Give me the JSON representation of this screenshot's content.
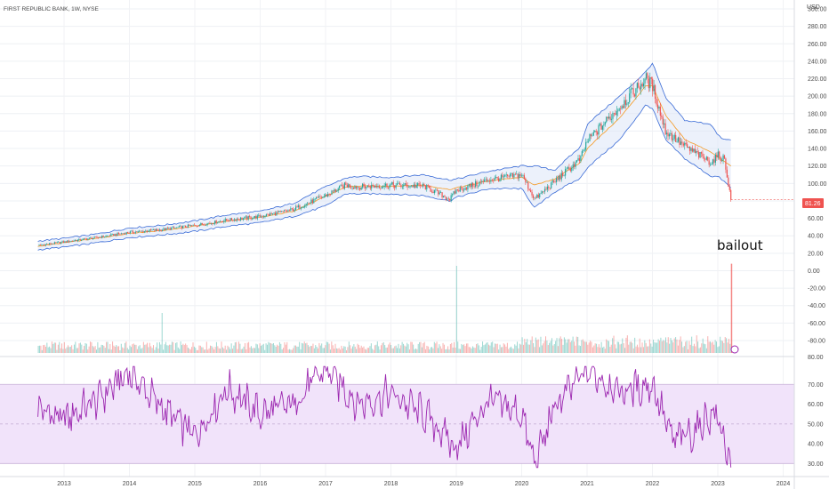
{
  "title": "FIRST REPUBLIC BANK, 1W, NYSE",
  "currency": "USD",
  "annotation": "bailout",
  "last_price_label": "81.26",
  "colors": {
    "up": "#26a69a",
    "down": "#ef5350",
    "band": "#3a6bd6",
    "band_fill": "#dce6f7",
    "basis": "#f59a23",
    "rsi": "#9c27b0",
    "rsi_band": "#f1e3fa",
    "price_tag": "#ef5350"
  },
  "chart_data": [
    {
      "type": "candlestick",
      "name": "price",
      "x_ticks": [
        "2013",
        "2014",
        "2015",
        "2016",
        "2017",
        "2018",
        "2019",
        "2020",
        "2021",
        "2022",
        "2023",
        "2024"
      ],
      "y_ticks": [
        "300.00",
        "280.00",
        "260.00",
        "240.00",
        "220.00",
        "200.00",
        "180.00",
        "160.00",
        "140.00",
        "120.00",
        "100.00",
        "80.00",
        "60.00",
        "40.00",
        "20.00",
        "0.00",
        "-20.00",
        "-40.00",
        "-60.00",
        "-80.00"
      ],
      "ylim": [
        -80,
        300
      ],
      "x": [
        2012.6,
        2013.0,
        2013.5,
        2014.0,
        2014.5,
        2015.0,
        2015.5,
        2016.0,
        2016.5,
        2017.0,
        2017.3,
        2017.5,
        2018.0,
        2018.5,
        2018.9,
        2019.0,
        2019.5,
        2020.0,
        2020.2,
        2020.5,
        2020.9,
        2021.0,
        2021.5,
        2021.9,
        2022.0,
        2022.2,
        2022.5,
        2022.9,
        2023.0,
        2023.1,
        2023.2
      ],
      "close": [
        29,
        33,
        38,
        44,
        47,
        52,
        58,
        62,
        70,
        86,
        98,
        96,
        98,
        97,
        82,
        92,
        104,
        110,
        82,
        102,
        128,
        148,
        188,
        220,
        212,
        160,
        142,
        124,
        132,
        128,
        81.26
      ],
      "bollinger": {
        "upper": [
          34,
          37,
          42,
          49,
          52,
          57,
          64,
          68,
          77,
          96,
          106,
          108,
          107,
          110,
          104,
          105,
          114,
          120,
          120,
          115,
          142,
          168,
          200,
          228,
          238,
          198,
          172,
          168,
          155,
          150,
          150
        ],
        "basis": [
          28,
          32,
          37,
          43,
          46,
          51,
          57,
          61,
          68,
          85,
          96,
          97,
          97,
          98,
          93,
          95,
          103,
          107,
          98,
          105,
          124,
          140,
          175,
          212,
          212,
          178,
          150,
          136,
          130,
          125,
          120
        ],
        "lower": [
          24,
          27,
          32,
          38,
          41,
          45,
          51,
          55,
          62,
          74,
          88,
          88,
          88,
          86,
          80,
          84,
          94,
          94,
          72,
          90,
          106,
          118,
          150,
          190,
          186,
          150,
          128,
          108,
          108,
          102,
          95
        ]
      }
    },
    {
      "type": "bar",
      "name": "volume",
      "spikes": [
        {
          "x": 2014.5,
          "relative": 0.45
        },
        {
          "x": 2019.0,
          "relative": 0.98
        },
        {
          "x": 2023.2,
          "relative": 1.0
        }
      ]
    },
    {
      "type": "line",
      "name": "RSI",
      "y_ticks": [
        "70.00",
        "60.00",
        "50.00",
        "40.00",
        "30.00"
      ],
      "ylim": [
        27,
        80
      ],
      "band": [
        30,
        70
      ],
      "x": [
        2012.6,
        2013.0,
        2013.5,
        2014.0,
        2014.5,
        2015.0,
        2015.5,
        2016.0,
        2016.5,
        2017.0,
        2017.5,
        2018.0,
        2018.5,
        2019.0,
        2019.5,
        2020.0,
        2020.2,
        2020.5,
        2021.0,
        2021.5,
        2022.0,
        2022.3,
        2022.6,
        2022.9,
        2023.0,
        2023.1,
        2023.2
      ],
      "values": [
        58,
        52,
        62,
        76,
        58,
        44,
        68,
        55,
        60,
        78,
        60,
        65,
        55,
        38,
        62,
        55,
        29,
        58,
        78,
        66,
        70,
        42,
        45,
        55,
        53,
        42,
        28
      ]
    }
  ]
}
